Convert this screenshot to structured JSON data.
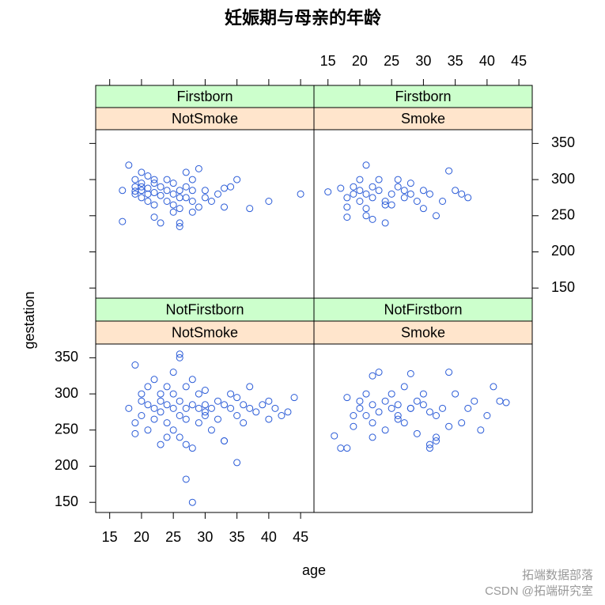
{
  "chart_data": {
    "type": "scatter",
    "title": "妊娠期与母亲的年龄",
    "x_label": "age",
    "y_label": "gestation",
    "color": "#2a5bd7",
    "strip_colors": [
      "#ccffcc",
      "#ffe5cc"
    ],
    "xlim": [
      12.8,
      47.1
    ],
    "ylim": [
      136,
      369
    ],
    "xticks": [
      15,
      20,
      25,
      30,
      35,
      40,
      45
    ],
    "yticks": [
      150,
      200,
      250,
      300,
      350
    ],
    "panels": [
      {
        "strips": [
          "Firstborn",
          "NotSmoke"
        ],
        "x": [
          19,
          19,
          19,
          19,
          20,
          20,
          20,
          20,
          21,
          21,
          21,
          21,
          22,
          22,
          22,
          22,
          23,
          23,
          23,
          24,
          24,
          24,
          25,
          25,
          25,
          26,
          26,
          26,
          26,
          27,
          27,
          27,
          28,
          28,
          28,
          29,
          30,
          30,
          31,
          32,
          33,
          34,
          35,
          37,
          40,
          45,
          17,
          18,
          17,
          20,
          22,
          25,
          26,
          28,
          29,
          33
        ],
        "y": [
          280,
          290,
          300,
          284,
          275,
          285,
          295,
          310,
          280,
          270,
          288,
          305,
          282,
          295,
          265,
          300,
          278,
          240,
          290,
          285,
          270,
          300,
          280,
          255,
          295,
          285,
          260,
          240,
          235,
          275,
          290,
          310,
          285,
          300,
          255,
          315,
          285,
          275,
          270,
          280,
          262,
          290,
          300,
          260,
          270,
          280,
          242,
          320,
          285,
          290,
          248,
          265,
          275,
          270,
          262,
          288
        ]
      },
      {
        "strips": [
          "Firstborn",
          "Smoke"
        ],
        "x": [
          15,
          17,
          18,
          18,
          19,
          19,
          20,
          20,
          20,
          21,
          21,
          21,
          22,
          22,
          22,
          23,
          23,
          24,
          24,
          25,
          25,
          26,
          26,
          27,
          28,
          28,
          29,
          30,
          30,
          31,
          33,
          34,
          35,
          36,
          37,
          18,
          21,
          24,
          27,
          32
        ],
        "y": [
          283,
          288,
          275,
          248,
          280,
          290,
          285,
          300,
          270,
          320,
          280,
          260,
          290,
          275,
          245,
          285,
          300,
          270,
          240,
          280,
          265,
          290,
          300,
          275,
          295,
          280,
          270,
          285,
          260,
          280,
          270,
          312,
          285,
          280,
          275,
          262,
          250,
          265,
          285,
          250
        ]
      },
      {
        "strips": [
          "NotFirstborn",
          "NotSmoke"
        ],
        "x": [
          18,
          19,
          19,
          19,
          20,
          20,
          20,
          21,
          21,
          21,
          22,
          22,
          22,
          23,
          23,
          23,
          23,
          24,
          24,
          24,
          25,
          25,
          25,
          25,
          26,
          26,
          26,
          26,
          27,
          27,
          27,
          27,
          28,
          28,
          28,
          29,
          29,
          29,
          30,
          30,
          30,
          31,
          31,
          32,
          32,
          33,
          33,
          34,
          34,
          35,
          35,
          36,
          36,
          37,
          37,
          38,
          39,
          40,
          40,
          41,
          42,
          43,
          44,
          27,
          28,
          26,
          33,
          24,
          30,
          35
        ],
        "y": [
          280,
          340,
          260,
          245,
          290,
          270,
          300,
          285,
          310,
          250,
          280,
          320,
          265,
          275,
          290,
          230,
          300,
          285,
          260,
          310,
          280,
          300,
          250,
          330,
          355,
          270,
          290,
          240,
          280,
          265,
          310,
          230,
          320,
          285,
          225,
          280,
          300,
          260,
          285,
          270,
          305,
          280,
          250,
          290,
          265,
          285,
          235,
          280,
          300,
          270,
          295,
          285,
          260,
          280,
          310,
          275,
          285,
          290,
          265,
          280,
          270,
          275,
          295,
          182,
          150,
          350,
          235,
          240,
          275,
          205
        ]
      },
      {
        "strips": [
          "NotFirstborn",
          "Smoke"
        ],
        "x": [
          16,
          17,
          18,
          18,
          19,
          19,
          20,
          20,
          21,
          21,
          22,
          22,
          22,
          23,
          23,
          24,
          24,
          25,
          25,
          26,
          26,
          27,
          27,
          28,
          28,
          29,
          29,
          30,
          30,
          31,
          31,
          32,
          32,
          33,
          34,
          34,
          35,
          36,
          37,
          38,
          39,
          40,
          41,
          42,
          43,
          28,
          31,
          32,
          26,
          22
        ],
        "y": [
          242,
          225,
          295,
          225,
          270,
          255,
          290,
          280,
          300,
          270,
          325,
          285,
          260,
          330,
          275,
          290,
          250,
          280,
          300,
          270,
          285,
          310,
          260,
          328,
          280,
          290,
          245,
          285,
          300,
          275,
          230,
          240,
          270,
          280,
          330,
          255,
          300,
          260,
          280,
          290,
          250,
          270,
          310,
          290,
          288,
          280,
          225,
          235,
          265,
          240
        ]
      }
    ]
  },
  "watermarks": [
    "拓端数据部落",
    "CSDN @拓端研究室"
  ]
}
